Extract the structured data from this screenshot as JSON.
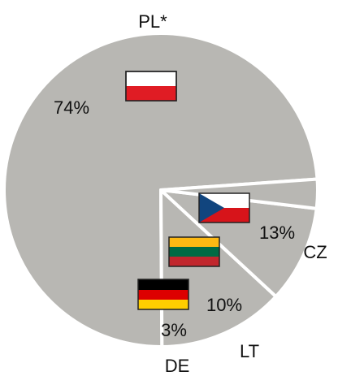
{
  "chart_data": {
    "type": "pie",
    "slices": [
      {
        "name": "PL*",
        "value": 74,
        "value_label": "74%",
        "color": "#b8b7b3",
        "flag": "poland-flag"
      },
      {
        "name": "CZ",
        "value": 13,
        "value_label": "13%",
        "color": "#b8b7b3",
        "flag": "czech-flag"
      },
      {
        "name": "LT",
        "value": 10,
        "value_label": "10%",
        "color": "#b8b7b3",
        "flag": "lithuania-flag"
      },
      {
        "name": "DE",
        "value": 3,
        "value_label": "3%",
        "color": "#b8b7b3",
        "flag": "germany-flag"
      }
    ],
    "separator_color": "#ffffff",
    "legend": "none"
  }
}
